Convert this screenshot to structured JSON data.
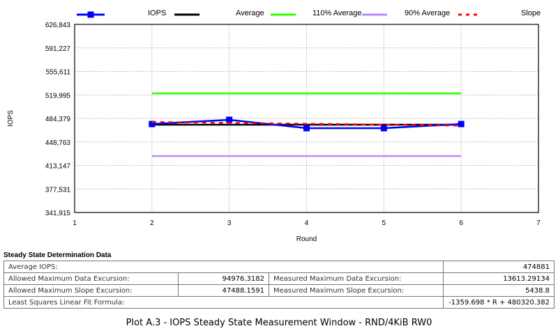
{
  "chart_data": {
    "type": "line",
    "xlabel": "Round",
    "ylabel": "IOPS",
    "xlim": [
      1,
      7
    ],
    "ylim": [
      341915,
      626843
    ],
    "x_ticks": [
      "1",
      "2",
      "3",
      "4",
      "5",
      "6",
      "7"
    ],
    "y_ticks": [
      "341,915",
      "377,531",
      "413,147",
      "448,763",
      "484,379",
      "519,995",
      "555,611",
      "591,227",
      "626,843"
    ],
    "grid": true,
    "legend_position": "top",
    "x": [
      2,
      3,
      4,
      5,
      6
    ],
    "series": [
      {
        "name": "IOPS",
        "color": "#0000ff",
        "values": [
          475900,
          482300,
          469600,
          469600,
          475900
        ],
        "marker": "square"
      },
      {
        "name": "Average",
        "color": "#000000",
        "values": [
          474881,
          474881,
          474881,
          474881,
          474881
        ]
      },
      {
        "name": "110% Average",
        "color": "#33ff00",
        "values": [
          522369,
          522369,
          522369,
          522369,
          522369
        ]
      },
      {
        "name": "90% Average",
        "color": "#bb88ff",
        "values": [
          427393,
          427393,
          427393,
          427393,
          427393
        ]
      },
      {
        "name": "Slope",
        "color": "#ff0000",
        "values": [
          478960,
          477601,
          476241,
          474881,
          473522
        ],
        "dashed": true
      }
    ]
  },
  "table": {
    "title": "Steady State Determination Data",
    "average_label": "Average IOPS:",
    "average_value": "474881",
    "allowed_data_label": "Allowed Maximum Data Excursion:",
    "allowed_data_value": "94976.3182",
    "measured_data_label": "Measured Maximum Data Excursion:",
    "measured_data_value": "13613.29134",
    "allowed_slope_label": "Allowed Maximum Slope Excursion:",
    "allowed_slope_value": "47488.1591",
    "measured_slope_label": "Measured Maximum Slope Excursion:",
    "measured_slope_value": "5438.8",
    "formula_label": "Least Squares Linear Fit Formula:",
    "formula_value": "-1359.698 * R + 480320.382"
  },
  "caption": "Plot A.3 - IOPS Steady State Measurement Window - RND/4KiB RW0"
}
